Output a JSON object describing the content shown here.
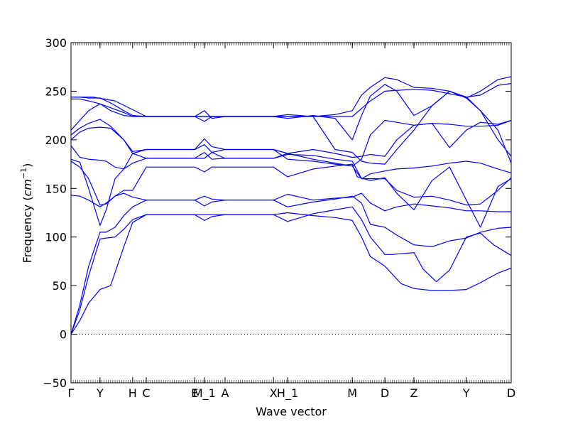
{
  "chart_data": {
    "type": "line",
    "title": "",
    "xlabel": "Wave vector",
    "ylabel_prefix": "Frequency (",
    "ylabel_unit_base": "cm",
    "ylabel_unit_exp": "−1",
    "ylabel_suffix": ")",
    "ylim": [
      -50,
      300
    ],
    "y_ticks": [
      -50,
      0,
      50,
      100,
      150,
      200,
      250,
      300
    ],
    "y_tick_labels": [
      "−50",
      "0",
      "50",
      "100",
      "150",
      "200",
      "250",
      "300"
    ],
    "grid": false,
    "legend": "none",
    "zero_line": true,
    "line_color": "#0000ff",
    "path_axis": {
      "note": "x positions are cumulative path-length coordinates on a 0-100 scale",
      "xlim": [
        0,
        100
      ],
      "high_symmetry_points": [
        {
          "label": "Γ",
          "x": 0
        },
        {
          "label": "Y",
          "x": 6.6
        },
        {
          "label": "H",
          "x": 14.0
        },
        {
          "label": "C",
          "x": 17.1
        },
        {
          "label": "E",
          "x": 28.1
        },
        {
          "label": "M_1",
          "x": 30.3
        },
        {
          "label": "A",
          "x": 35.0
        },
        {
          "label": "X",
          "x": 46.0
        },
        {
          "label": "H_1",
          "x": 49.2
        },
        {
          "label": "M",
          "x": 63.9
        },
        {
          "label": "D",
          "x": 71.3
        },
        {
          "label": "Z",
          "x": 77.9
        },
        {
          "label": "Y",
          "x": 89.8
        },
        {
          "label": "D",
          "x": 100
        }
      ]
    },
    "series": [
      {
        "x": [
          0,
          2,
          4,
          6.6,
          9,
          12,
          14,
          17.1,
          28.1,
          30.3,
          32,
          35,
          46,
          49.2,
          55,
          60,
          63.9,
          66,
          68,
          71.3,
          75,
          77.9,
          82,
          86,
          89.8,
          93,
          97,
          100
        ],
        "values": [
          0,
          14,
          32,
          46,
          50,
          90,
          115,
          123,
          123,
          123,
          123,
          123,
          123,
          125,
          122,
          120,
          117,
          100,
          80,
          70,
          52,
          47,
          45,
          45,
          46,
          53,
          63,
          68
        ]
      },
      {
        "x": [
          0,
          2,
          4,
          6.6,
          8,
          10,
          12,
          14,
          17.1,
          28.1,
          30.3,
          32,
          35,
          46,
          49.2,
          55,
          60,
          63.9,
          66,
          68,
          71.3,
          73,
          77.9,
          80,
          83,
          86,
          89.8,
          93,
          96,
          100
        ],
        "values": [
          0,
          25,
          60,
          98,
          99,
          100,
          108,
          118,
          123,
          123,
          117,
          121,
          123,
          123,
          116,
          124,
          128,
          131,
          118,
          100,
          82,
          82,
          84,
          67,
          54,
          66,
          100,
          104,
          92,
          81
        ]
      },
      {
        "x": [
          0,
          2,
          4,
          6.6,
          8,
          10,
          12,
          14,
          17.1,
          28.1,
          30.3,
          32,
          35,
          46,
          49.2,
          55,
          60,
          63.9,
          66,
          68,
          71.3,
          74,
          77.9,
          82,
          86,
          89.8,
          93,
          97,
          100
        ],
        "values": [
          0,
          30,
          70,
          105,
          105,
          110,
          122,
          131,
          138,
          138,
          142,
          139,
          138,
          138,
          131,
          136,
          139,
          142,
          135,
          113,
          110,
          102,
          92,
          90,
          96,
          99,
          105,
          109,
          110
        ]
      },
      {
        "x": [
          0,
          2,
          4,
          6.6,
          8,
          10,
          12,
          14,
          17.1,
          28.1,
          30.3,
          32,
          35,
          46,
          49.2,
          55,
          60,
          63.9,
          66,
          68,
          71.3,
          74,
          77.9,
          82,
          86,
          89.8,
          93,
          97,
          100
        ],
        "values": [
          143,
          142,
          138,
          131,
          135,
          142,
          145,
          141,
          138,
          138,
          132,
          136,
          138,
          138,
          144,
          138,
          140,
          141,
          145,
          135,
          127,
          131,
          134,
          132,
          130,
          127,
          127,
          126,
          126
        ]
      },
      {
        "x": [
          0,
          2,
          4,
          6.6,
          8,
          10,
          12,
          14,
          17.1,
          28.1,
          30.3,
          32,
          35,
          46,
          49.2,
          55,
          60,
          63.9,
          65,
          68,
          71.3,
          74,
          77.9,
          82,
          86,
          89.8,
          93,
          97,
          100
        ],
        "values": [
          178,
          172,
          160,
          133,
          134,
          142,
          148,
          148,
          172,
          172,
          167,
          172,
          172,
          172,
          162,
          170,
          173,
          175,
          162,
          158,
          161,
          145,
          128,
          158,
          172,
          138,
          110,
          152,
          160
        ]
      },
      {
        "x": [
          0,
          2,
          4,
          6.6,
          8,
          10,
          12,
          14,
          17.1,
          28.1,
          30.3,
          32,
          35,
          46,
          49.2,
          55,
          60,
          63.9,
          66,
          68,
          71.3,
          74,
          77.9,
          82,
          86,
          89.8,
          93,
          97,
          100
        ],
        "values": [
          180,
          177,
          150,
          112,
          128,
          160,
          170,
          176,
          181,
          181,
          187,
          180,
          181,
          181,
          185,
          184,
          180,
          178,
          160,
          160,
          160,
          148,
          141,
          142,
          138,
          133,
          134,
          148,
          161
        ]
      },
      {
        "x": [
          0,
          2,
          4,
          6.6,
          8,
          10,
          12,
          14,
          17.1,
          28.1,
          30.3,
          32,
          35,
          46,
          49.2,
          55,
          60,
          63.9,
          66,
          68,
          71.3,
          74,
          77.9,
          82,
          86,
          89.8,
          93,
          97,
          100
        ],
        "values": [
          194,
          182,
          180,
          179,
          178,
          172,
          170,
          186,
          181,
          181,
          181,
          187,
          181,
          181,
          186,
          180,
          176,
          173,
          160,
          165,
          168,
          170,
          171,
          173,
          176,
          178,
          176,
          170,
          166
        ]
      },
      {
        "x": [
          0,
          2,
          4,
          6.6,
          9,
          12,
          14,
          17.1,
          28.1,
          30.3,
          32,
          35,
          46,
          49.2,
          55,
          60,
          63.9,
          66,
          68,
          71.3,
          74,
          77.9,
          82,
          86,
          89.8,
          93,
          97,
          100
        ],
        "values": [
          200,
          208,
          212,
          213,
          212,
          200,
          188,
          190,
          190,
          195,
          187,
          190,
          190,
          186,
          190,
          186,
          182,
          183,
          185,
          183,
          200,
          215,
          217,
          216,
          214,
          214,
          215,
          220
        ]
      },
      {
        "x": [
          0,
          2,
          4,
          6.6,
          9,
          12,
          14,
          17.1,
          28.1,
          30.3,
          32,
          35,
          46,
          49.2,
          55,
          60,
          63.9,
          66,
          68,
          71.3,
          74,
          77.9,
          82,
          86,
          89.8,
          93,
          97,
          100
        ],
        "values": [
          205,
          212,
          217,
          221,
          214,
          200,
          186,
          190,
          190,
          201,
          193,
          190,
          190,
          180,
          178,
          175,
          173,
          180,
          205,
          220,
          218,
          215,
          217,
          192,
          210,
          218,
          216,
          220
        ]
      },
      {
        "x": [
          0,
          2,
          4,
          6.6,
          9,
          12,
          14,
          17.1,
          28.1,
          30.3,
          32,
          35,
          46,
          49.2,
          55,
          60,
          63.9,
          66,
          68,
          71.3,
          74,
          77.9,
          82,
          86,
          89.8,
          93,
          97,
          100
        ],
        "values": [
          210,
          220,
          230,
          237,
          233,
          228,
          224,
          224,
          224,
          224,
          224,
          224,
          224,
          224,
          224,
          190,
          187,
          178,
          176,
          175,
          190,
          210,
          235,
          250,
          244,
          230,
          200,
          183
        ]
      },
      {
        "x": [
          0,
          2,
          4,
          6.6,
          9,
          12,
          14,
          17.1,
          28.1,
          30.3,
          32,
          35,
          46,
          49.2,
          55,
          60,
          63.9,
          66,
          68,
          71.3,
          74,
          77.9,
          82,
          86,
          89.8,
          93,
          97,
          100
        ],
        "values": [
          242,
          242,
          240,
          237,
          230,
          225,
          224,
          224,
          224,
          230,
          222,
          224,
          224,
          226,
          224,
          226,
          230,
          246,
          254,
          264,
          262,
          254,
          253,
          250,
          243,
          230,
          210,
          176
        ]
      },
      {
        "x": [
          0,
          2,
          4,
          6.6,
          9,
          12,
          14,
          17.1,
          28.1,
          30.3,
          32,
          35,
          46,
          49.2,
          55,
          60,
          63.9,
          66,
          68,
          71.3,
          74,
          77.9,
          82,
          86,
          89.8,
          93,
          97,
          100
        ],
        "values": [
          244,
          244,
          243,
          243,
          238,
          230,
          225,
          224,
          224,
          219,
          224,
          224,
          224,
          222,
          225,
          222,
          200,
          225,
          245,
          257,
          250,
          225,
          235,
          250,
          243,
          250,
          262,
          265
        ]
      },
      {
        "x": [
          0,
          5,
          10,
          17.1,
          28.1,
          35,
          46,
          55,
          63.9,
          68,
          71.3,
          77.9,
          82,
          89.8,
          93,
          97,
          100
        ],
        "values": [
          244,
          244,
          240,
          224,
          224,
          224,
          224,
          224,
          224,
          240,
          250,
          252,
          251,
          244,
          246,
          256,
          258
        ]
      }
    ]
  }
}
